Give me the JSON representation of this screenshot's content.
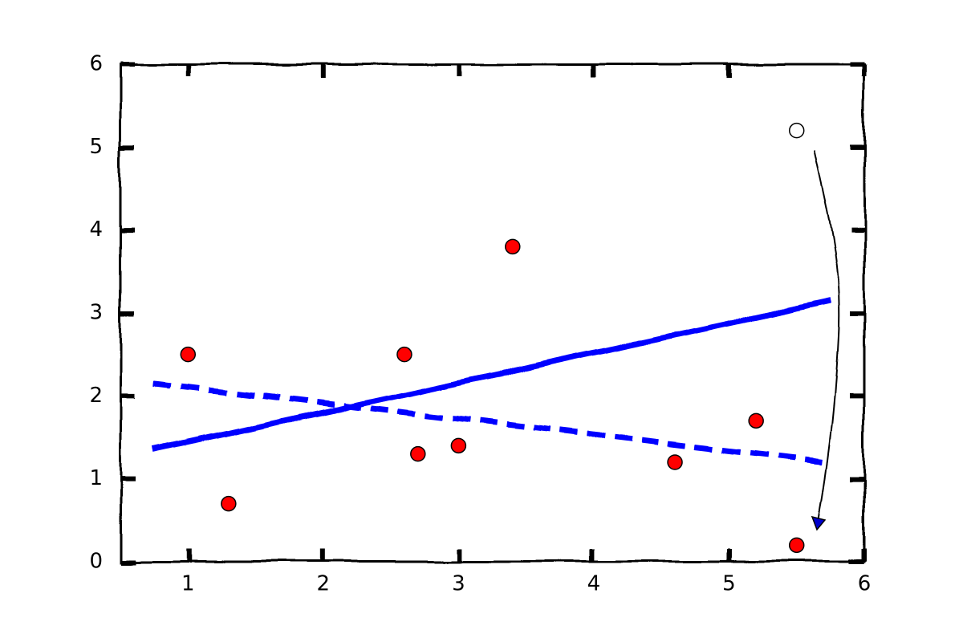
{
  "chart_data": {
    "type": "scatter",
    "xlim": [
      0.5,
      6
    ],
    "ylim": [
      0,
      6
    ],
    "xticks": [
      1,
      2,
      3,
      4,
      5,
      6
    ],
    "yticks": [
      0,
      1,
      2,
      3,
      4,
      5,
      6
    ],
    "grid": false,
    "series": [
      {
        "style": "markers",
        "color": "#ff0000",
        "x": [
          1,
          1.3,
          2.6,
          2.7,
          3,
          3.4,
          4.6,
          5.2,
          5.5
        ],
        "values": [
          2.5,
          0.7,
          2.5,
          1.3,
          1.4,
          3.8,
          1.2,
          1.7,
          0.2
        ]
      },
      {
        "style": "markers",
        "color": "#ffffff",
        "x": [
          5.5
        ],
        "values": [
          5.2
        ]
      },
      {
        "style": "solid",
        "color": "#0000ff",
        "x": [
          0.75,
          5.75
        ],
        "values": [
          1.35,
          3.15
        ]
      },
      {
        "style": "dashed",
        "color": "#0000ff",
        "x": [
          0.75,
          5.75
        ],
        "values": [
          2.15,
          1.2
        ]
      }
    ]
  }
}
